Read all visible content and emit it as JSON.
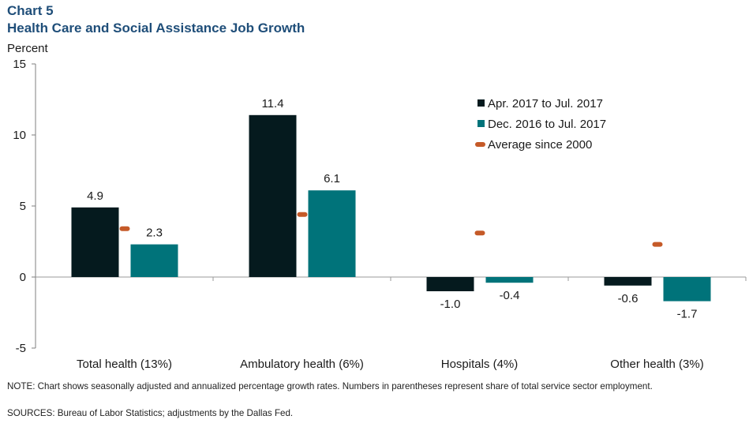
{
  "chart_number": "Chart 5",
  "chart_data": {
    "type": "bar",
    "title": "Health Care and Social Assistance Job Growth",
    "ylabel": "Percent",
    "xlabel": "",
    "ylim": [
      -5,
      15
    ],
    "yticks": [
      -5,
      0,
      5,
      10,
      15
    ],
    "grid": false,
    "legend_position": "top-right",
    "categories": [
      "Total health (13%)",
      "Ambulatory health (6%)",
      "Hospitals (4%)",
      "Other health (3%)"
    ],
    "series": [
      {
        "name": "Apr. 2017 to Jul. 2017",
        "type": "bar",
        "color": "#051a1e",
        "values": [
          4.9,
          11.4,
          -1.0,
          -0.6
        ],
        "labels": [
          "4.9",
          "11.4",
          "-1.0",
          "-0.6"
        ]
      },
      {
        "name": "Dec. 2016 to Jul. 2017",
        "type": "bar",
        "color": "#00737a",
        "values": [
          2.3,
          6.1,
          -0.4,
          -1.7
        ],
        "labels": [
          "2.3",
          "6.1",
          "-0.4",
          "-1.7"
        ]
      },
      {
        "name": "Average since 2000",
        "type": "marker",
        "color": "#c55a28",
        "values": [
          3.4,
          4.4,
          3.1,
          2.3
        ]
      }
    ]
  },
  "footer": {
    "note": "NOTE: Chart shows seasonally adjusted and annualized percentage growth rates. Numbers in parentheses represent share of total service sector employment.",
    "sources": "SOURCES: Bureau of Labor Statistics; adjustments by the Dallas Fed."
  }
}
